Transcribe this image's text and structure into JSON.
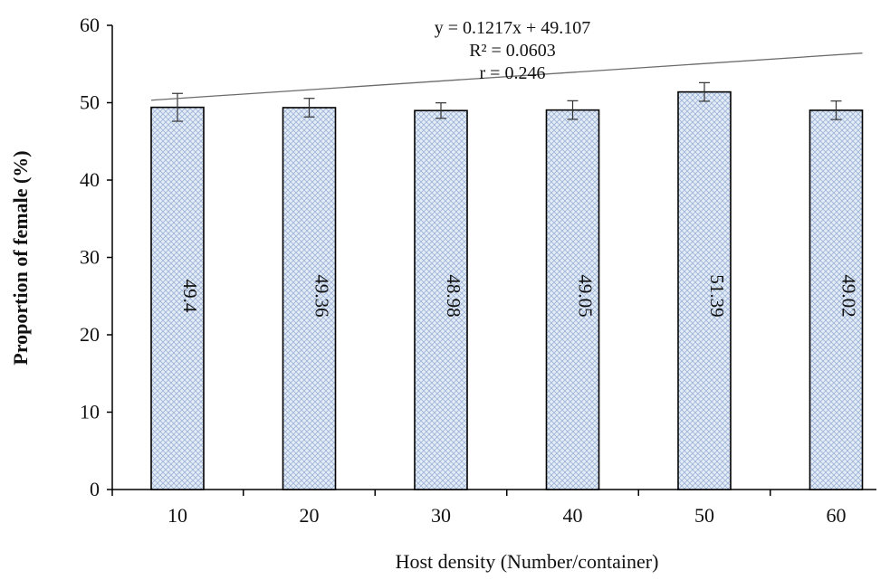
{
  "chart_data": {
    "type": "bar",
    "categories": [
      "10",
      "20",
      "30",
      "40",
      "50",
      "60"
    ],
    "values": [
      49.4,
      49.36,
      48.98,
      49.05,
      51.39,
      49.02
    ],
    "error": [
      1.8,
      1.2,
      1.0,
      1.2,
      1.2,
      1.2
    ],
    "data_labels": [
      "49.4",
      "49.36",
      "48.98",
      "49.05",
      "51.39",
      "49.02"
    ],
    "xlabel": "Host density (Number/container)",
    "ylabel": "Proportion of female (%)",
    "ylim": [
      0,
      60
    ],
    "yticks": [
      "0",
      "10",
      "20",
      "30",
      "40",
      "50",
      "60"
    ],
    "trendline": {
      "type": "linear",
      "slope": 0.1217,
      "intercept": 49.107,
      "equation": "y = 0.1217x + 49.107",
      "r_squared": "R² = 0.0603",
      "r": "r = 0.246"
    },
    "bar_fill": "#dfe8f5",
    "bar_hatch": "#9fb5d8",
    "bar_stroke": "#000000",
    "grid": false,
    "legend": "none"
  }
}
